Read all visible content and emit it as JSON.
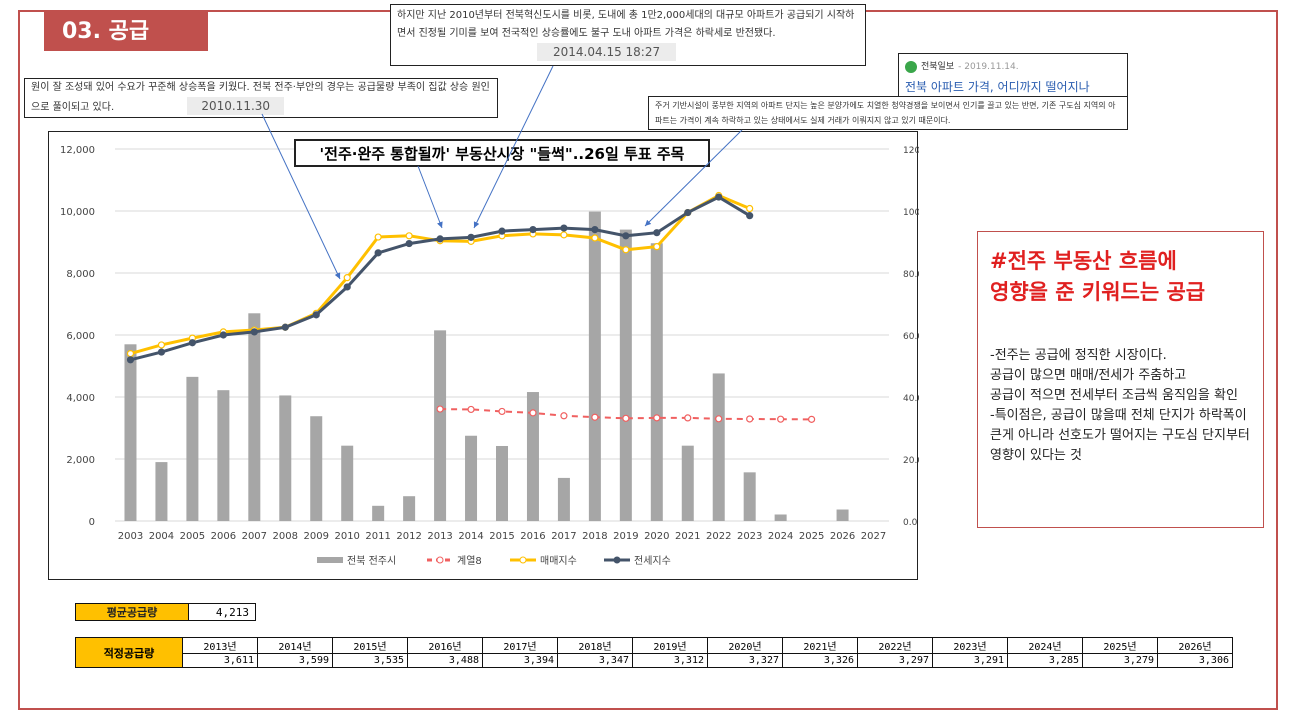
{
  "section": {
    "title": "03. 공급"
  },
  "callouts": {
    "left": {
      "text": "원이 잘 조성돼 있어 수요가 꾸준해 상승폭을 키웠다. 전북 전주·부안의 경우는 공급물량 부족이 집값 상승 원인으로 풀이되고 있다.",
      "date": "2010.11.30"
    },
    "top": {
      "text": "하지만 지난 2010년부터 전북혁신도시를 비롯, 도내에 총 1만2,000세대의 대규모 아파트가 공급되기 시작하면서 진정될 기미를 보여 전국적인 상승률에도 불구 도내 아파트 가격은 하락세로 반전됐다.",
      "date": "2014.04.15 18:27"
    },
    "news": {
      "source": "전북일보",
      "date": "- 2019.11.14.",
      "title": "전북 아파트 가격, 어디까지 떨어지나"
    },
    "right": {
      "text": "주거 기반시설이 풍부한 지역의 아파트 단지는 높은 분양가에도 치열한 청약경쟁을 보이면서 인기를 끌고 있는 반면, 기존 구도심 지역의 아파트는 가격이 계속 하락하고 있는 상태에서도 실제 거래가 이뤄지지 않고 있기 때문이다."
    },
    "headline": "'전주·완주 통합될까' 부동산시장 \"들썩\"..26일 투표 주목"
  },
  "summary": {
    "title_line1": "#전주 부동산 흐름에",
    "title_line2": "영향을 준 키워드는 공급",
    "body": "-전주는 공급에 정직한 시장이다.\n공급이 많으면 매매/전세가 주춤하고\n공급이 적으면 전세부터 조금씩 움직임을 확인\n-특이점은, 공급이 많을때 전체 단지가 하락폭이 큰게 아니라 선호도가 떨어지는 구도심 단지부터 영향이 있다는 것"
  },
  "colors": {
    "bar": "#a6a6a6",
    "trend": "#f06060",
    "sale": "#ffc000",
    "rent": "#44546a",
    "accent": "#c0504d"
  },
  "chart_data": {
    "type": "bar",
    "categories": [
      "2003",
      "2004",
      "2005",
      "2006",
      "2007",
      "2008",
      "2009",
      "2010",
      "2011",
      "2012",
      "2013",
      "2014",
      "2015",
      "2016",
      "2017",
      "2018",
      "2019",
      "2020",
      "2021",
      "2022",
      "2023",
      "2024",
      "2025",
      "2026",
      "2027"
    ],
    "ylim_left": [
      0,
      12000
    ],
    "ylim_right": [
      0,
      120
    ],
    "yticks_left": [
      "0",
      "2,000",
      "4,000",
      "6,000",
      "8,000",
      "10,000",
      "12,000"
    ],
    "yticks_right": [
      "0.0",
      "20.0",
      "40.0",
      "60.0",
      "80.0",
      "100.0",
      "120.0"
    ],
    "grid": true,
    "legend_position": "bottom",
    "series": [
      {
        "name": "전북 전주시",
        "kind": "bar",
        "axis": "left",
        "values": [
          5700,
          1900,
          4650,
          4220,
          6700,
          4050,
          3380,
          2430,
          490,
          800,
          6150,
          2750,
          2420,
          4160,
          1390,
          9980,
          9400,
          8960,
          2430,
          4760,
          1570,
          210,
          0,
          370,
          0
        ]
      },
      {
        "name": "계열8",
        "kind": "line-dashed",
        "axis": "left",
        "values": [
          null,
          null,
          null,
          null,
          null,
          null,
          null,
          null,
          null,
          null,
          3611,
          3599,
          3535,
          3488,
          3394,
          3347,
          3312,
          3327,
          3326,
          3297,
          3291,
          3285,
          3279,
          null,
          null
        ]
      },
      {
        "name": "매매지수",
        "kind": "line",
        "axis": "right",
        "values": [
          54.0,
          56.8,
          59.0,
          61.0,
          61.6,
          62.5,
          67.0,
          78.5,
          91.6,
          92.0,
          90.4,
          90.2,
          92.0,
          92.6,
          92.3,
          91.3,
          87.5,
          88.5,
          99.5,
          105.0,
          100.8,
          null,
          null,
          null,
          null
        ]
      },
      {
        "name": "전세지수",
        "kind": "line",
        "axis": "right",
        "values": [
          52.0,
          54.5,
          57.5,
          60.0,
          61.0,
          62.5,
          66.5,
          75.5,
          86.5,
          89.5,
          91.0,
          91.5,
          93.5,
          94.0,
          94.5,
          94.0,
          92.0,
          93.0,
          99.5,
          104.5,
          98.5,
          null,
          null,
          null,
          null
        ]
      }
    ]
  },
  "avg_supply": {
    "label": "평균공급량",
    "value": "4,213"
  },
  "proper_supply": {
    "label": "적정공급량",
    "years": [
      "2013년",
      "2014년",
      "2015년",
      "2016년",
      "2017년",
      "2018년",
      "2019년",
      "2020년",
      "2021년",
      "2022년",
      "2023년",
      "2024년",
      "2025년",
      "2026년"
    ],
    "values": [
      "3,611",
      "3,599",
      "3,535",
      "3,488",
      "3,394",
      "3,347",
      "3,312",
      "3,327",
      "3,326",
      "3,297",
      "3,291",
      "3,285",
      "3,279",
      "3,306"
    ]
  }
}
